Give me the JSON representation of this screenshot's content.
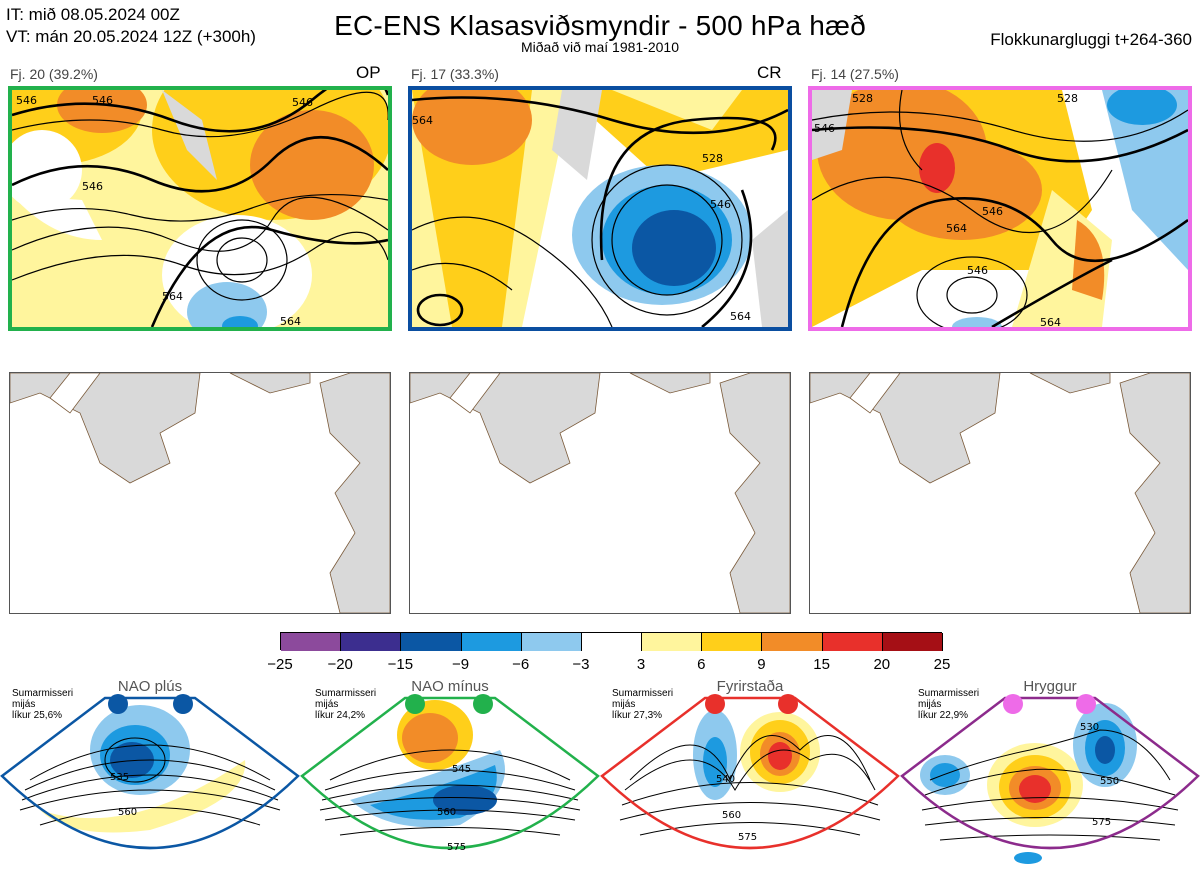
{
  "header": {
    "it_line": "IT: mið 08.05.2024 00Z",
    "vt_line": "VT: mán 20.05.2024 12Z  (+300h)",
    "title": "EC-ENS Klasasviðsmyndir - 500 hPa hæð",
    "subtitle": "Miðað við maí 1981-2010",
    "window": "Flokkunargluggi t+264-360"
  },
  "panels": [
    {
      "label": "Fj. 20 (39.2%)",
      "tag": "OP",
      "border_color": "#22b14c",
      "contour_labels": [
        "546",
        "546",
        "546",
        "546",
        "564",
        "564"
      ]
    },
    {
      "label": "Fj. 17 (33.3%)",
      "tag": "CR",
      "border_color": "#0a4ea0",
      "contour_labels": [
        "564",
        "528",
        "546",
        "564"
      ]
    },
    {
      "label": "Fj. 14 (27.5%)",
      "tag": "",
      "border_color": "#ee6be8",
      "contour_labels": [
        "528",
        "546",
        "528",
        "564",
        "546",
        "546",
        "564"
      ]
    }
  ],
  "colorbar": {
    "ticks": [
      "−25",
      "−20",
      "−15",
      "−9",
      "−6",
      "−3",
      "3",
      "6",
      "9",
      "15",
      "20",
      "25"
    ],
    "colors": [
      "#8c4a9c",
      "#3c2e8f",
      "#0b57a4",
      "#1d9ae0",
      "#8ec9ee",
      "#ffffff",
      "#fff59d",
      "#ffcf1a",
      "#f28c28",
      "#e8302b",
      "#a50f15"
    ]
  },
  "regimes": [
    {
      "name": "NAO plús",
      "meta": [
        "Sumarmisseri",
        "mijás",
        "líkur 25,6%"
      ],
      "dot_color": "#0b57a4",
      "frame_color": "#0b57a4",
      "contour_labels": [
        "535",
        "560"
      ]
    },
    {
      "name": "NAO mínus",
      "meta": [
        "Sumarmisseri",
        "mijás",
        "líkur 24,2%"
      ],
      "dot_color": "#22b14c",
      "frame_color": "#22b14c",
      "contour_labels": [
        "545",
        "560",
        "575"
      ]
    },
    {
      "name": "Fyrirstaða",
      "meta": [
        "Sumarmisseri",
        "mijás",
        "líkur 27,3%"
      ],
      "dot_color": "#e8302b",
      "frame_color": "#e8302b",
      "contour_labels": [
        "540",
        "560",
        "575"
      ]
    },
    {
      "name": "Hryggur",
      "meta": [
        "Sumarmisseri",
        "mijás",
        "líkur 22,9%"
      ],
      "dot_color": "#ee6be8",
      "frame_color": "#8c2b8c",
      "contour_labels": [
        "530",
        "550",
        "575"
      ]
    }
  ]
}
